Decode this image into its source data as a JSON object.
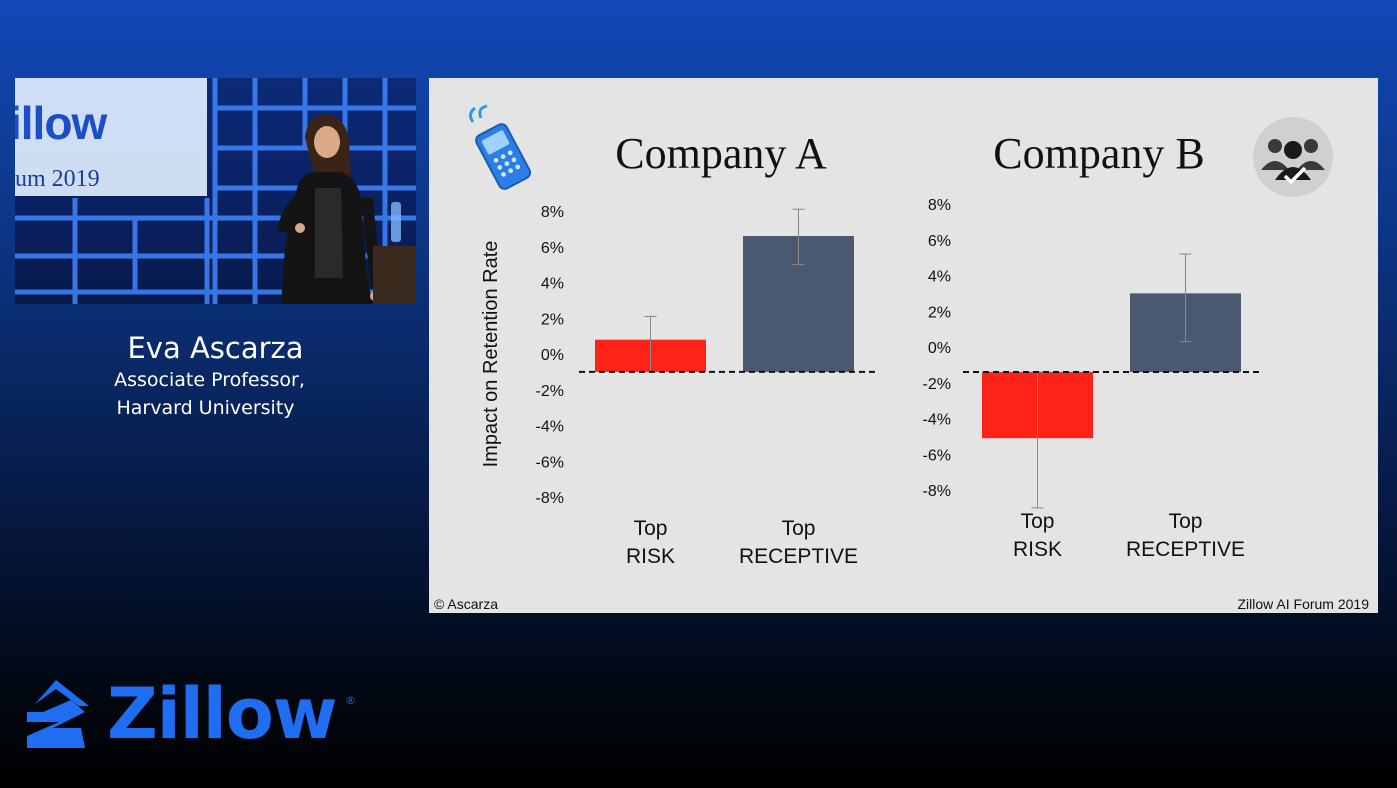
{
  "speaker": {
    "name": "Eva Ascarza",
    "title_line1": "Associate Professor,",
    "title_line2": "Harvard University"
  },
  "video_backdrop": {
    "logo_text": "illow",
    "forum_text": "um 2019"
  },
  "slide": {
    "copyright": "© Ascarza",
    "footer": "Zillow AI Forum 2019"
  },
  "brand": {
    "wordmark": "Zillow",
    "registered": "®",
    "color": "#1f6ef2"
  },
  "colors": {
    "risk_bar": "#ff2218",
    "receptive_bar": "#4a5870",
    "slide_bg": "#e4e4e4"
  },
  "chart_data": [
    {
      "type": "bar",
      "title": "Company A",
      "icon": "cell-phone-icon",
      "ylabel": "Impact on Retention Rate",
      "yticks": [
        "8%",
        "6%",
        "4%",
        "2%",
        "0%",
        "-2%",
        "-4%",
        "-6%",
        "-8%"
      ],
      "ylim": [
        -8,
        8
      ],
      "baseline": -1,
      "categories": [
        {
          "line1": "Top",
          "line2": "RISK"
        },
        {
          "line1": "Top",
          "line2": "RECEPTIVE"
        }
      ],
      "values": [
        0.8,
        6.6
      ],
      "error_low": [
        -1.0,
        5.0
      ],
      "error_high": [
        2.1,
        8.1
      ]
    },
    {
      "type": "bar",
      "title": "Company B",
      "icon": "team-approval-icon",
      "yticks": [
        "8%",
        "6%",
        "4%",
        "2%",
        "0%",
        "-2%",
        "-4%",
        "-6%",
        "-8%"
      ],
      "ylim": [
        -8,
        8
      ],
      "baseline": -1.4,
      "categories": [
        {
          "line1": "Top",
          "line2": "RISK"
        },
        {
          "line1": "Top",
          "line2": "RECEPTIVE"
        }
      ],
      "values": [
        -5.1,
        3.0
      ],
      "error_low": [
        -9.0,
        0.3
      ],
      "error_high": [
        -1.4,
        5.2
      ]
    }
  ]
}
